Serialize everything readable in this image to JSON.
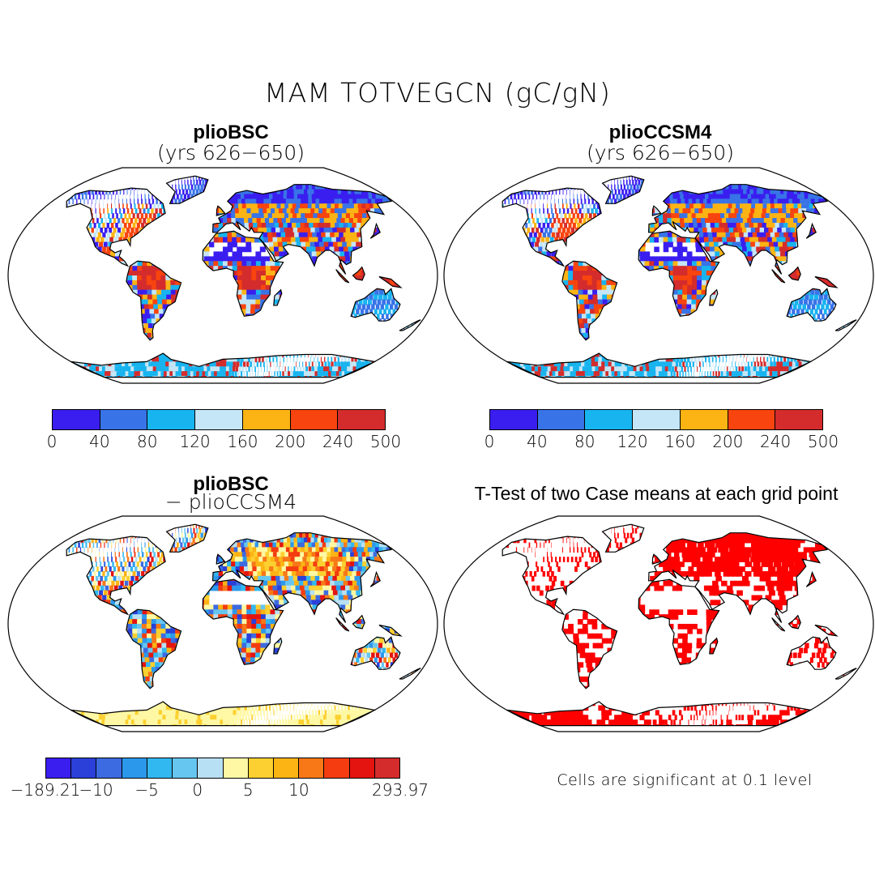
{
  "title": "MAM TOTVEGCN (gC/gN)",
  "panels": [
    {
      "title": "plioBSC",
      "subtitle": "(yrs 626−650)"
    },
    {
      "title": "plioCCSM4",
      "subtitle": "(yrs 626−650)"
    },
    {
      "title": "plioBSC",
      "subtitle": "− plioCCSM4"
    },
    {
      "title": "T-Test of two Case means at each grid point",
      "subtitle": ""
    }
  ],
  "colorbar_abs": {
    "labels": [
      "0",
      "40",
      "80",
      "120",
      "160",
      "200",
      "240",
      "500"
    ],
    "colors": [
      "#3a1ef0",
      "#3874e8",
      "#18b4f0",
      "#c4e6f6",
      "#fcb414",
      "#f8440e",
      "#d42c2c"
    ]
  },
  "colorbar_diff": {
    "labels": [
      "−189.21",
      "−10",
      "−5",
      "0",
      "5",
      "10",
      "293.97"
    ],
    "colors": [
      "#3a1ef0",
      "#2a40d8",
      "#3c6ae0",
      "#2c98ec",
      "#32b8f0",
      "#66c6f0",
      "#b8e0f4",
      "#fef8a4",
      "#fcd030",
      "#fcb414",
      "#f87818",
      "#f43c10",
      "#e41410",
      "#d42c2c"
    ]
  },
  "ttest_note": "Cells are significant at 0.1 level",
  "colors": {
    "significant": "#ff0000",
    "land_outline": "#000000"
  }
}
